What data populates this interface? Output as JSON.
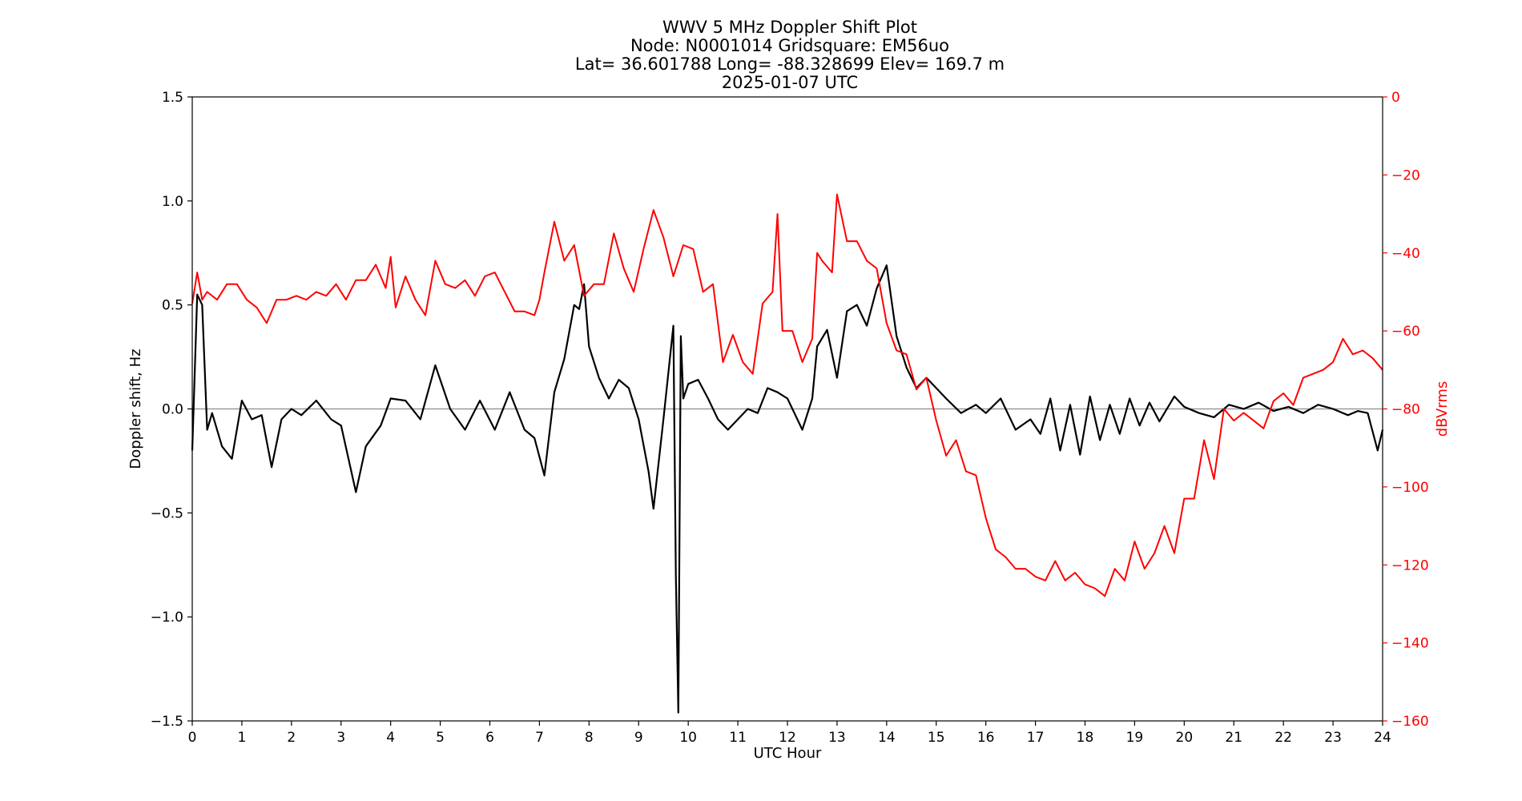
{
  "chart_data": {
    "type": "line",
    "title_lines": [
      "WWV 5 MHz Doppler Shift Plot",
      "Node:  N0001014     Gridsquare:  EM56uo",
      "Lat= 36.601788    Long= -88.328699    Elev= 169.7 m",
      "2025-01-07  UTC"
    ],
    "xlabel": "UTC Hour",
    "ylabel_left": "Doppler shift, Hz",
    "ylabel_right": "dBVrms",
    "xlim": [
      0,
      24
    ],
    "ylim_left": [
      -1.5,
      1.5
    ],
    "ylim_right": [
      -160,
      0
    ],
    "x_ticks": [
      0,
      1,
      2,
      3,
      4,
      5,
      6,
      7,
      8,
      9,
      10,
      11,
      12,
      13,
      14,
      15,
      16,
      17,
      18,
      19,
      20,
      21,
      22,
      23,
      24
    ],
    "y_ticks_left": [
      "1.5",
      "1.0",
      "0.5",
      "0.0",
      "−0.5",
      "−1.0",
      "−1.5"
    ],
    "y_tick_values_left": [
      1.5,
      1.0,
      0.5,
      0.0,
      -0.5,
      -1.0,
      -1.5
    ],
    "y_ticks_right": [
      "0",
      "−20",
      "−40",
      "−60",
      "−80",
      "−100",
      "−120",
      "−140",
      "−160"
    ],
    "y_tick_values_right": [
      0,
      -20,
      -40,
      -60,
      -80,
      -100,
      -120,
      -140,
      -160
    ],
    "zero_line": 0.0,
    "grid": false,
    "colors": {
      "doppler": "#000000",
      "power": "#ff0000",
      "zero_line": "#999999",
      "right_axis": "#ff0000"
    },
    "series": [
      {
        "axis": "left",
        "x": [
          0.0,
          0.1,
          0.2,
          0.3,
          0.4,
          0.6,
          0.8,
          1.0,
          1.2,
          1.4,
          1.6,
          1.8,
          2.0,
          2.2,
          2.5,
          2.8,
          3.0,
          3.3,
          3.5,
          3.8,
          4.0,
          4.3,
          4.6,
          4.9,
          5.2,
          5.5,
          5.8,
          6.1,
          6.4,
          6.7,
          6.9,
          7.1,
          7.3,
          7.5,
          7.7,
          7.8,
          7.9,
          8.0,
          8.2,
          8.4,
          8.6,
          8.8,
          9.0,
          9.2,
          9.3,
          9.5,
          9.7,
          9.75,
          9.8,
          9.85,
          9.9,
          10.0,
          10.2,
          10.4,
          10.6,
          10.8,
          11.0,
          11.2,
          11.4,
          11.6,
          11.8,
          12.0,
          12.3,
          12.5,
          12.6,
          12.8,
          13.0,
          13.2,
          13.4,
          13.6,
          13.8,
          14.0,
          14.2,
          14.4,
          14.6,
          14.8,
          15.0,
          15.2,
          15.5,
          15.8,
          16.0,
          16.3,
          16.6,
          16.9,
          17.1,
          17.3,
          17.5,
          17.7,
          17.9,
          18.1,
          18.3,
          18.5,
          18.7,
          18.9,
          19.1,
          19.3,
          19.5,
          19.8,
          20.0,
          20.3,
          20.6,
          20.9,
          21.2,
          21.5,
          21.8,
          22.1,
          22.4,
          22.7,
          23.0,
          23.3,
          23.5,
          23.7,
          23.9,
          24.0
        ],
        "values": [
          -0.2,
          0.55,
          0.5,
          -0.1,
          -0.02,
          -0.18,
          -0.24,
          0.04,
          -0.05,
          -0.03,
          -0.28,
          -0.05,
          0.0,
          -0.03,
          0.04,
          -0.05,
          -0.08,
          -0.4,
          -0.18,
          -0.08,
          0.05,
          0.04,
          -0.05,
          0.21,
          0.0,
          -0.1,
          0.04,
          -0.1,
          0.08,
          -0.1,
          -0.14,
          -0.32,
          0.08,
          0.24,
          0.5,
          0.48,
          0.6,
          0.3,
          0.15,
          0.05,
          0.14,
          0.1,
          -0.05,
          -0.3,
          -0.48,
          -0.05,
          0.4,
          -0.8,
          -1.46,
          0.35,
          0.05,
          0.12,
          0.14,
          0.05,
          -0.05,
          -0.1,
          -0.05,
          0.0,
          -0.02,
          0.1,
          0.08,
          0.05,
          -0.1,
          0.05,
          0.3,
          0.38,
          0.15,
          0.47,
          0.5,
          0.4,
          0.58,
          0.69,
          0.35,
          0.2,
          0.1,
          0.15,
          0.1,
          0.05,
          -0.02,
          0.02,
          -0.02,
          0.05,
          -0.1,
          -0.05,
          -0.12,
          0.05,
          -0.2,
          0.02,
          -0.22,
          0.06,
          -0.15,
          0.02,
          -0.12,
          0.05,
          -0.08,
          0.03,
          -0.06,
          0.06,
          0.01,
          -0.02,
          -0.04,
          0.02,
          0.0,
          0.03,
          -0.01,
          0.01,
          -0.02,
          0.02,
          0.0,
          -0.03,
          -0.01,
          -0.02,
          -0.2,
          -0.1
        ]
      },
      {
        "axis": "right",
        "x": [
          0.0,
          0.1,
          0.2,
          0.3,
          0.5,
          0.7,
          0.9,
          1.1,
          1.3,
          1.5,
          1.7,
          1.9,
          2.1,
          2.3,
          2.5,
          2.7,
          2.9,
          3.1,
          3.3,
          3.5,
          3.7,
          3.9,
          4.0,
          4.1,
          4.3,
          4.5,
          4.7,
          4.9,
          5.1,
          5.3,
          5.5,
          5.7,
          5.9,
          6.1,
          6.3,
          6.5,
          6.7,
          6.9,
          7.0,
          7.1,
          7.3,
          7.5,
          7.7,
          7.9,
          8.1,
          8.3,
          8.5,
          8.7,
          8.9,
          9.1,
          9.3,
          9.5,
          9.7,
          9.9,
          10.1,
          10.3,
          10.5,
          10.7,
          10.9,
          11.1,
          11.3,
          11.5,
          11.7,
          11.8,
          11.9,
          12.1,
          12.3,
          12.5,
          12.6,
          12.7,
          12.9,
          13.0,
          13.2,
          13.4,
          13.6,
          13.8,
          14.0,
          14.2,
          14.4,
          14.6,
          14.8,
          15.0,
          15.2,
          15.4,
          15.6,
          15.8,
          16.0,
          16.2,
          16.4,
          16.6,
          16.8,
          17.0,
          17.2,
          17.4,
          17.6,
          17.8,
          18.0,
          18.2,
          18.4,
          18.6,
          18.8,
          19.0,
          19.2,
          19.4,
          19.6,
          19.8,
          20.0,
          20.2,
          20.4,
          20.6,
          20.8,
          21.0,
          21.2,
          21.4,
          21.6,
          21.8,
          22.0,
          22.2,
          22.4,
          22.6,
          22.8,
          23.0,
          23.2,
          23.4,
          23.6,
          23.8,
          24.0
        ],
        "values": [
          -53,
          -45,
          -52,
          -50,
          -52,
          -48,
          -48,
          -52,
          -54,
          -58,
          -52,
          -52,
          -51,
          -52,
          -50,
          -51,
          -48,
          -52,
          -47,
          -47,
          -43,
          -49,
          -41,
          -54,
          -46,
          -52,
          -56,
          -42,
          -48,
          -49,
          -47,
          -51,
          -46,
          -45,
          -50,
          -55,
          -55,
          -56,
          -52,
          -45,
          -32,
          -42,
          -38,
          -51,
          -48,
          -48,
          -35,
          -44,
          -50,
          -39,
          -29,
          -36,
          -46,
          -38,
          -39,
          -50,
          -48,
          -68,
          -61,
          -68,
          -71,
          -53,
          -50,
          -30,
          -60,
          -60,
          -68,
          -62,
          -40,
          -42,
          -45,
          -25,
          -37,
          -37,
          -42,
          -44,
          -58,
          -65,
          -66,
          -75,
          -72,
          -83,
          -92,
          -88,
          -96,
          -97,
          -108,
          -116,
          -118,
          -121,
          -121,
          -123,
          -124,
          -119,
          -124,
          -122,
          -125,
          -126,
          -128,
          -121,
          -124,
          -114,
          -121,
          -117,
          -110,
          -117,
          -103,
          -103,
          -88,
          -98,
          -80,
          -83,
          -81,
          -83,
          -85,
          -78,
          -76,
          -79,
          -72,
          -71,
          -70,
          -68,
          -62,
          -66,
          -65,
          -67,
          -70
        ]
      }
    ]
  }
}
